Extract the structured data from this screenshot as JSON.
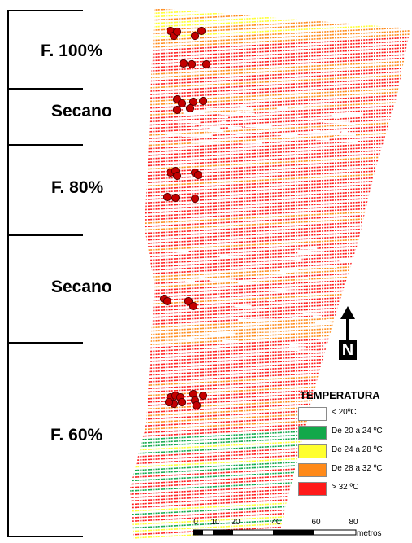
{
  "zones": [
    {
      "label": "F. 100%"
    },
    {
      "label": "Secano"
    },
    {
      "label": "F. 80%"
    },
    {
      "label": "Secano"
    },
    {
      "label": "F. 60%"
    }
  ],
  "legend": {
    "title": "TEMPERATURA",
    "items": [
      {
        "label": "< 20ºC",
        "color": "#ffffff"
      },
      {
        "label": "De 20 a 24 ºC",
        "color": "#12a84a"
      },
      {
        "label": "De 24 a 28 ºC",
        "color": "#ffff2e"
      },
      {
        "label": "De 28 a 32 ºC",
        "color": "#ff8a1a"
      },
      {
        "label": "> 32 ºC",
        "color": "#ff1a1a"
      }
    ]
  },
  "north_arrow": {
    "letter": "N"
  },
  "scale_bar": {
    "ticks": [
      "0",
      "10",
      "20",
      "40",
      "60",
      "80"
    ],
    "unit": "metros"
  },
  "map_colors": {
    "hot": "#ff1a1a",
    "warm": "#ff8a1a",
    "mild": "#ffff2e",
    "cool": "#12a84a",
    "marker": "#c40000"
  }
}
